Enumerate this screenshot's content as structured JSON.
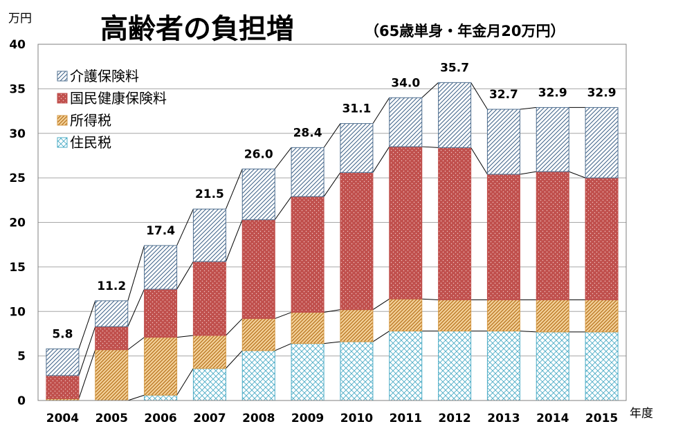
{
  "chart_data": {
    "type": "bar",
    "stacked": true,
    "title": "高齢者の負担増",
    "subtitle": "（65歳単身・年金月20万円）",
    "ylabel": "万円",
    "xlabel": "年度",
    "ylim": [
      0,
      40
    ],
    "yticks": [
      0,
      5,
      10,
      15,
      20,
      25,
      30,
      35,
      40
    ],
    "grid": true,
    "legend_position": "top-left",
    "categories": [
      "2004",
      "2005",
      "2006",
      "2007",
      "2008",
      "2009",
      "2010",
      "2011",
      "2012",
      "2013",
      "2014",
      "2015"
    ],
    "series": [
      {
        "name": "住民税",
        "color": "#4bacc6",
        "pattern": "cross",
        "values": [
          0.0,
          0.0,
          0.6,
          3.6,
          5.6,
          6.4,
          6.6,
          7.8,
          7.8,
          7.8,
          7.7,
          7.7
        ]
      },
      {
        "name": "所得税",
        "color": "#d59a45",
        "pattern": "diagonal",
        "values": [
          0.2,
          5.7,
          6.5,
          3.7,
          3.6,
          3.5,
          3.6,
          3.6,
          3.5,
          3.5,
          3.6,
          3.6
        ]
      },
      {
        "name": "国民健康保険料",
        "color": "#c0504d",
        "pattern": "dots",
        "values": [
          2.6,
          2.6,
          5.4,
          8.3,
          11.1,
          13.0,
          15.4,
          17.1,
          17.1,
          14.1,
          14.4,
          13.7
        ]
      },
      {
        "name": "介護保険料",
        "color": "#4f6f8f",
        "pattern": "hatch",
        "values": [
          3.0,
          2.9,
          4.9,
          5.9,
          5.7,
          5.5,
          5.5,
          5.5,
          7.3,
          7.3,
          7.2,
          7.9
        ]
      }
    ],
    "totals": [
      "5.8",
      "11.2",
      "17.4",
      "21.5",
      "26.0",
      "28.4",
      "31.1",
      "34.0",
      "35.7",
      "32.7",
      "32.9",
      "32.9"
    ],
    "legend_order": [
      "介護保険料",
      "国民健康保険料",
      "所得税",
      "住民税"
    ]
  }
}
